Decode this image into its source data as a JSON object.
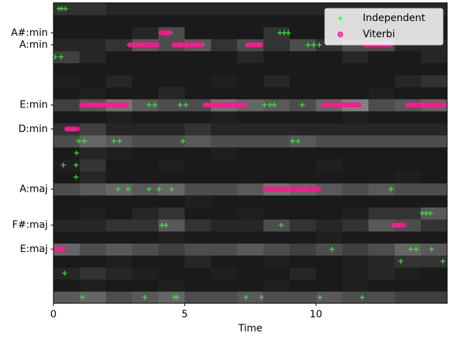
{
  "chart_data": {
    "type": "scatter",
    "xlabel": "Time",
    "xlim": [
      0,
      15
    ],
    "xticks": [
      0,
      5,
      10
    ],
    "ylim": [
      -0.5,
      24.5
    ],
    "yticks": [
      {
        "value": 4,
        "label": "E:maj"
      },
      {
        "value": 6,
        "label": "F#:maj"
      },
      {
        "value": 9,
        "label": "A:maj"
      },
      {
        "value": 14,
        "label": "D:min"
      },
      {
        "value": 16,
        "label": "E:min"
      },
      {
        "value": 21,
        "label": "A:min"
      },
      {
        "value": 22,
        "label": "A#:min"
      }
    ],
    "legend": "upper right",
    "heatmap": {
      "values": [
        [
          0.35,
          0.4,
          0.3,
          0.35,
          0.4,
          0.3,
          0.3,
          0.35,
          0.3,
          0.3,
          0.35,
          0.3,
          0.3,
          0.25,
          0.25
        ],
        [
          0.1,
          0.12,
          0.1,
          0.1,
          0.12,
          0.1,
          0.1,
          0.1,
          0.12,
          0.1,
          0.1,
          0.12,
          0.1,
          0.1,
          0.1
        ],
        [
          0.15,
          0.2,
          0.15,
          0.12,
          0.1,
          0.1,
          0.12,
          0.1,
          0.1,
          0.15,
          0.1,
          0.12,
          0.15,
          0.12,
          0.1
        ],
        [
          0.1,
          0.1,
          0.12,
          0.1,
          0.1,
          0.15,
          0.1,
          0.1,
          0.12,
          0.1,
          0.1,
          0.12,
          0.15,
          0.2,
          0.2
        ],
        [
          0.4,
          0.3,
          0.35,
          0.3,
          0.25,
          0.3,
          0.3,
          0.35,
          0.3,
          0.25,
          0.3,
          0.25,
          0.3,
          0.4,
          0.35
        ],
        [
          0.1,
          0.1,
          0.1,
          0.1,
          0.12,
          0.1,
          0.1,
          0.1,
          0.1,
          0.1,
          0.12,
          0.1,
          0.1,
          0.1,
          0.1
        ],
        [
          0.15,
          0.15,
          0.2,
          0.2,
          0.35,
          0.2,
          0.15,
          0.15,
          0.3,
          0.2,
          0.15,
          0.2,
          0.35,
          0.3,
          0.2
        ],
        [
          0.1,
          0.12,
          0.1,
          0.15,
          0.2,
          0.1,
          0.1,
          0.12,
          0.1,
          0.1,
          0.1,
          0.12,
          0.2,
          0.2,
          0.35
        ],
        [
          0.1,
          0.1,
          0.1,
          0.1,
          0.1,
          0.12,
          0.1,
          0.1,
          0.1,
          0.1,
          0.1,
          0.1,
          0.1,
          0.1,
          0.1
        ],
        [
          0.3,
          0.35,
          0.4,
          0.35,
          0.4,
          0.3,
          0.3,
          0.35,
          0.45,
          0.4,
          0.35,
          0.3,
          0.35,
          0.3,
          0.3
        ],
        [
          0.1,
          0.15,
          0.1,
          0.1,
          0.1,
          0.1,
          0.1,
          0.1,
          0.1,
          0.1,
          0.1,
          0.1,
          0.1,
          0.12,
          0.1
        ],
        [
          0.12,
          0.2,
          0.1,
          0.1,
          0.12,
          0.1,
          0.1,
          0.1,
          0.1,
          0.1,
          0.12,
          0.1,
          0.1,
          0.1,
          0.1
        ],
        [
          0.1,
          0.15,
          0.12,
          0.1,
          0.1,
          0.1,
          0.12,
          0.1,
          0.1,
          0.1,
          0.1,
          0.1,
          0.1,
          0.1,
          0.1
        ],
        [
          0.3,
          0.4,
          0.35,
          0.3,
          0.3,
          0.35,
          0.3,
          0.3,
          0.3,
          0.35,
          0.3,
          0.3,
          0.3,
          0.3,
          0.3
        ],
        [
          0.2,
          0.25,
          0.15,
          0.15,
          0.15,
          0.2,
          0.15,
          0.15,
          0.15,
          0.15,
          0.15,
          0.15,
          0.15,
          0.15,
          0.15
        ],
        [
          0.1,
          0.1,
          0.12,
          0.1,
          0.1,
          0.1,
          0.12,
          0.1,
          0.1,
          0.1,
          0.1,
          0.12,
          0.1,
          0.1,
          0.1
        ],
        [
          0.25,
          0.35,
          0.45,
          0.35,
          0.3,
          0.3,
          0.45,
          0.4,
          0.35,
          0.3,
          0.4,
          0.5,
          0.3,
          0.35,
          0.4
        ],
        [
          0.1,
          0.12,
          0.1,
          0.1,
          0.15,
          0.1,
          0.1,
          0.1,
          0.1,
          0.1,
          0.1,
          0.1,
          0.12,
          0.1,
          0.1
        ],
        [
          0.12,
          0.1,
          0.15,
          0.1,
          0.1,
          0.1,
          0.12,
          0.1,
          0.15,
          0.1,
          0.1,
          0.1,
          0.1,
          0.15,
          0.2
        ],
        [
          0.1,
          0.1,
          0.1,
          0.1,
          0.1,
          0.1,
          0.1,
          0.1,
          0.1,
          0.1,
          0.1,
          0.1,
          0.1,
          0.1,
          0.1
        ],
        [
          0.25,
          0.15,
          0.1,
          0.1,
          0.1,
          0.1,
          0.1,
          0.15,
          0.1,
          0.1,
          0.1,
          0.15,
          0.1,
          0.1,
          0.15
        ],
        [
          0.15,
          0.15,
          0.2,
          0.35,
          0.3,
          0.35,
          0.2,
          0.3,
          0.2,
          0.3,
          0.2,
          0.3,
          0.3,
          0.15,
          0.15
        ],
        [
          0.1,
          0.1,
          0.1,
          0.15,
          0.3,
          0.1,
          0.1,
          0.1,
          0.2,
          0.1,
          0.1,
          0.1,
          0.1,
          0.1,
          0.1
        ],
        [
          0.1,
          0.1,
          0.1,
          0.1,
          0.1,
          0.1,
          0.1,
          0.1,
          0.1,
          0.1,
          0.1,
          0.1,
          0.1,
          0.1,
          0.1
        ],
        [
          0.2,
          0.2,
          0.15,
          0.15,
          0.15,
          0.15,
          0.15,
          0.15,
          0.15,
          0.15,
          0.15,
          0.15,
          0.15,
          0.15,
          0.15
        ]
      ]
    },
    "series": [
      {
        "name": "Independent",
        "color": "#33ff33",
        "marker": "plus",
        "x": [
          0.21,
          0.32,
          0.46,
          4.34,
          4.45,
          8.63,
          8.79,
          8.95,
          2.89,
          3.05,
          3.21,
          3.38,
          4.61,
          4.82,
          5.04,
          5.25,
          5.46,
          5.68,
          7.39,
          7.61,
          7.82,
          9.7,
          9.91,
          10.13,
          0.05,
          0.29,
          1.39,
          1.61,
          1.82,
          2.04,
          2.25,
          2.46,
          2.68,
          2.84,
          3.64,
          3.86,
          4.82,
          5.04,
          5.79,
          6.0,
          6.21,
          6.43,
          6.64,
          6.86,
          7.07,
          7.29,
          8.04,
          8.25,
          8.41,
          9.48,
          10.29,
          10.5,
          10.72,
          10.93,
          11.14,
          11.36,
          11.57,
          11.73,
          13.5,
          13.72,
          14.09,
          14.36,
          14.63,
          14.84,
          0.54,
          0.75,
          0.96,
          1.18,
          2.3,
          2.52,
          4.93,
          9.11,
          9.32,
          0.88,
          0.38,
          0.86,
          0.86,
          2.46,
          2.84,
          3.64,
          4.02,
          4.5,
          8.57,
          9.0,
          9.59,
          12.86,
          14.04,
          14.2,
          14.36,
          4.13,
          4.29,
          8.68,
          12.97,
          13.13,
          0.11,
          0.21,
          10.61,
          13.61,
          13.82,
          14.41,
          13.23,
          14.84,
          0.43,
          1.1,
          3.48,
          4.61,
          4.71,
          7.34,
          7.93,
          10.15,
          11.76
        ],
        "y": [
          24,
          24,
          24,
          22,
          22,
          22,
          22,
          22,
          21,
          21,
          21,
          21,
          21,
          21,
          21,
          21,
          21,
          21,
          21,
          21,
          21,
          21,
          21,
          21,
          20,
          20,
          16,
          16,
          16,
          16,
          16,
          16,
          16,
          16,
          16,
          16,
          16,
          16,
          16,
          16,
          16,
          16,
          16,
          16,
          16,
          16,
          16,
          16,
          16,
          16,
          16,
          16,
          16,
          16,
          16,
          16,
          16,
          16,
          16,
          16,
          16,
          16,
          16,
          16,
          14,
          14,
          13,
          13,
          13,
          13,
          13,
          13,
          13,
          12,
          11,
          11,
          10,
          9,
          9,
          9,
          9,
          9,
          9,
          9,
          9,
          9,
          7,
          7,
          7,
          6,
          6,
          6,
          6,
          6,
          4,
          4,
          4,
          4,
          4,
          4,
          3,
          3,
          2,
          0,
          0,
          0,
          0,
          0,
          0,
          0,
          0
        ]
      },
      {
        "name": "Viterbi",
        "color": "#ff1493",
        "marker": "circle",
        "x_start": [
          0,
          0.43,
          0.99,
          2.84,
          4.02,
          4.5,
          5.71,
          7.34,
          7.98,
          10.21,
          11.79,
          12.89,
          13.42
        ],
        "x_end": [
          0.46,
          0.99,
          2.89,
          4.05,
          4.5,
          5.73,
          7.37,
          7.98,
          10.21,
          11.76,
          12.89,
          13.42,
          14.97
        ],
        "y": [
          4,
          14,
          16,
          21,
          22,
          21,
          16,
          21,
          9,
          16,
          21,
          6,
          16
        ]
      }
    ]
  }
}
